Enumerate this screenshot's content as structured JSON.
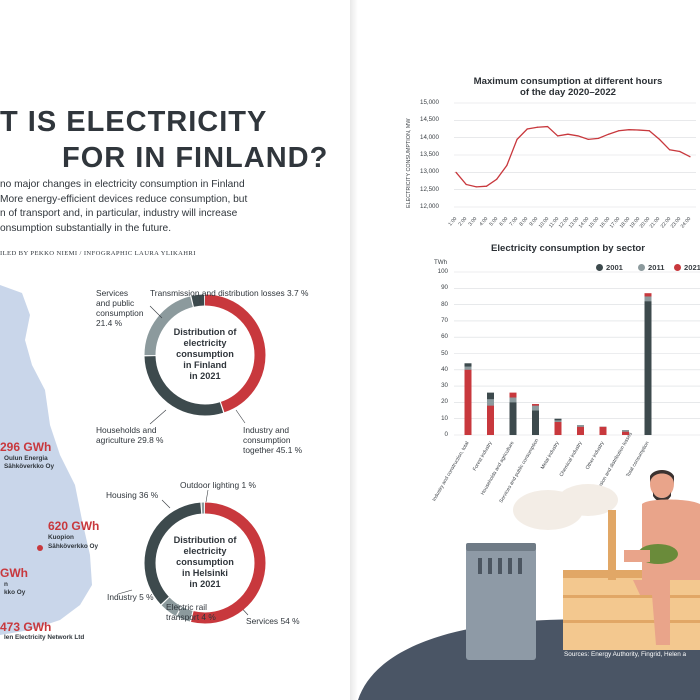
{
  "article": {
    "headline_line1": "T IS ELECTRICITY",
    "headline_line2": "FOR IN FINLAND?",
    "intro_lines": [
      "no major changes in electricity consumption in Finland",
      "More energy-efficient devices reduce consumption, but",
      "n of transport and, in particular, industry will increase",
      "onsumption substantially in the future."
    ],
    "credit": "ILED BY PEKKO NIEMI / INFOGRAPHIC LAURA YLIKAHRI"
  },
  "map_labels": [
    {
      "value": "296 GWh",
      "sub1": "Oulun Energia",
      "sub2": "Sähköverkko Oy"
    },
    {
      "value": "620 GWh",
      "sub1": "Kuopion",
      "sub2": "Sähköverkko Oy"
    },
    {
      "value": "GWh",
      "sub1": "n",
      "sub2": "kko Oy"
    },
    {
      "value": "473 GWh",
      "sub1": "len Electricity Network Ltd",
      "sub2": ""
    }
  ],
  "donut_finland": {
    "center": [
      "Distribution of",
      "electricity",
      "consumption",
      "in Finland",
      "in 2021"
    ],
    "labels": {
      "services": [
        "Services",
        "and public",
        "consumption",
        "21.4 %"
      ],
      "losses": "Transmission and distribution losses 3.7 %",
      "households": [
        "Households and",
        "agriculture 29.8 %"
      ],
      "industry": [
        "Industry and",
        "consumption",
        "together 45.1 %"
      ]
    }
  },
  "donut_helsinki": {
    "center": [
      "Distribution of",
      "electricity",
      "consumption",
      "in Helsinki",
      "in 2021"
    ],
    "labels": {
      "housing": "Housing 36 %",
      "outdoor": "Outdoor lighting 1 %",
      "industry": "Industry 5 %",
      "rail": [
        "Electric rail",
        "transport 4 %"
      ],
      "services": "Services 54 %"
    }
  },
  "colors": {
    "red": "#c8383d",
    "dark": "#3d4a4d",
    "gray": "#8c9a9d",
    "map": "#c9d6ea",
    "floor": "#4a5565"
  },
  "chart_data": [
    {
      "type": "pie",
      "title": "Distribution of electricity consumption in Finland in 2021",
      "categories": [
        "Industry and consumption together",
        "Households and agriculture",
        "Services and public consumption",
        "Transmission and distribution losses"
      ],
      "values": [
        45.1,
        29.8,
        21.4,
        3.7
      ],
      "colors": [
        "#c8383d",
        "#3d4a4d",
        "#8c9a9d",
        "#3d4a4d"
      ]
    },
    {
      "type": "pie",
      "title": "Distribution of electricity consumption in Helsinki in 2021",
      "categories": [
        "Services",
        "Electric rail transport",
        "Industry",
        "Housing",
        "Outdoor lighting"
      ],
      "values": [
        54,
        4,
        5,
        36,
        1
      ],
      "colors": [
        "#c8383d",
        "#8c9a9d",
        "#8c9a9d",
        "#3d4a4d",
        "#8c9a9d"
      ]
    },
    {
      "type": "line",
      "title": "Maximum consumption at different hours of the day 2020–2022",
      "ylabel": "ELECTRICITY CONSUMPTION, MW",
      "ylim": [
        12000,
        15000
      ],
      "yticks": [
        "12,000",
        "12,500",
        "13,000",
        "13,500",
        "14,000",
        "14,500",
        "15,000"
      ],
      "x": [
        "1:00",
        "2:00",
        "3:00",
        "4:00",
        "5:00",
        "6:00",
        "7:00",
        "8:00",
        "9:00",
        "10:00",
        "11:00",
        "12:00",
        "13:00",
        "14:00",
        "15:00",
        "16:00",
        "17:00",
        "18:00",
        "19:00",
        "20:00",
        "21:00",
        "22:00",
        "23:00",
        "24:00"
      ],
      "values": [
        13000,
        12650,
        12580,
        12600,
        12800,
        13200,
        13950,
        14250,
        14300,
        14320,
        14050,
        14100,
        14050,
        13950,
        13980,
        14100,
        14200,
        14230,
        14220,
        14200,
        13950,
        13650,
        13600,
        13450
      ],
      "color": "#c8383d"
    },
    {
      "type": "bar",
      "title": "Electricity consumption by sector",
      "ylabel": "TWh",
      "ylim": [
        0,
        100
      ],
      "yticks": [
        "0",
        "10",
        "20",
        "30",
        "40",
        "50",
        "60",
        "70",
        "80",
        "90",
        "100"
      ],
      "categories": [
        "Industry and construction, total",
        "Forest industry",
        "Households and agriculture",
        "Services and public consumption",
        "Metal industry",
        "Chemical industry",
        "Other industry",
        "Transmission and distribution losses",
        "Total consumption"
      ],
      "series": [
        {
          "name": "2001",
          "values": [
            44,
            26,
            20,
            15,
            10,
            6,
            5,
            3,
            82
          ],
          "color": "#3d4a4d"
        },
        {
          "name": "2011",
          "values": [
            42,
            22,
            23,
            18,
            9,
            6,
            5,
            3,
            85
          ],
          "color": "#8c9a9d"
        },
        {
          "name": "2021",
          "values": [
            40,
            18,
            26,
            19,
            8,
            5,
            5,
            2,
            87
          ],
          "color": "#c8383d"
        }
      ]
    }
  ],
  "sources": "Sources: Energy Authority, Fingrid, Helen a"
}
